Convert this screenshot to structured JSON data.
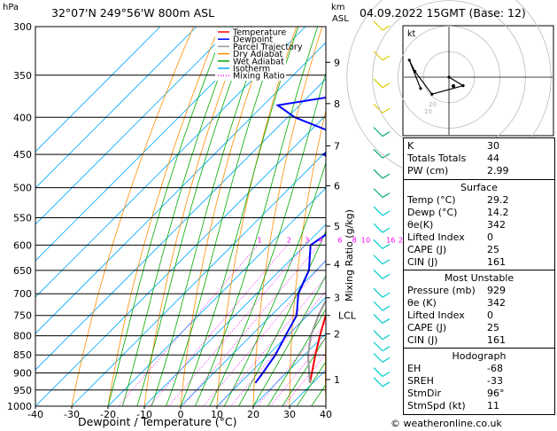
{
  "header": {
    "location": "32°07'N  249°56'W  800m  ASL",
    "datetime": "04.09.2022  15GMT  (Base: 12)",
    "hpa_unit": "hPa",
    "km_unit": "km",
    "asl_unit": "ASL"
  },
  "footer": {
    "copyright": "© weatheronline.co.uk"
  },
  "chart_data": {
    "type": "line",
    "title": "",
    "xlabel": "Dewpoint / Temperature (°C)",
    "ylabel": "hPa",
    "right_axis_label": "Mixing Ratio (g/kg)",
    "xlim": [
      -40,
      40
    ],
    "ylim": [
      1000,
      300
    ],
    "y_log": true,
    "x_ticks": [
      -40,
      -30,
      -20,
      -10,
      0,
      10,
      20,
      30,
      40
    ],
    "pressure_levels": [
      300,
      350,
      400,
      450,
      500,
      550,
      600,
      650,
      700,
      750,
      800,
      850,
      900,
      950,
      1000
    ],
    "height_km_ticks": [
      {
        "p": 919,
        "label": "1"
      },
      {
        "p": 795,
        "label": "2"
      },
      {
        "p": 709,
        "label": "3"
      },
      {
        "p": 638,
        "label": "4"
      },
      {
        "p": 565,
        "label": "5"
      },
      {
        "p": 497,
        "label": "6"
      },
      {
        "p": 438,
        "label": "7"
      },
      {
        "p": 383,
        "label": "8"
      },
      {
        "p": 336,
        "label": "9"
      }
    ],
    "lcl": {
      "p": 750,
      "label": "LCL"
    },
    "mixing_ratio_labels": [
      "1",
      "2",
      "3",
      "4",
      "6",
      "8",
      "10",
      "16",
      "20",
      "25"
    ],
    "legend": {
      "position": "top-left",
      "entries": [
        {
          "name": "Temperature",
          "color": "#ff0000"
        },
        {
          "name": "Dewpoint",
          "color": "#0000ff"
        },
        {
          "name": "Parcel Trajectory",
          "color": "#999999"
        },
        {
          "name": "Dry Adiabat",
          "color": "#ff8c00"
        },
        {
          "name": "Wet Adiabat",
          "color": "#00aa00"
        },
        {
          "name": "Isotherm",
          "color": "#00aaff"
        },
        {
          "name": "Mixing Ratio",
          "color": "#ff00ff"
        }
      ]
    },
    "series": [
      {
        "name": "Temperature",
        "color": "#ff0000",
        "points": [
          [
            929,
            29.2
          ],
          [
            900,
            27.0
          ],
          [
            850,
            23.0
          ],
          [
            800,
            19.0
          ],
          [
            750,
            15.0
          ],
          [
            700,
            11.0
          ],
          [
            650,
            7.0
          ],
          [
            600,
            2.5
          ],
          [
            550,
            -2.0
          ],
          [
            500,
            -6.5
          ],
          [
            450,
            -12.0
          ],
          [
            420,
            -15.5
          ],
          [
            400,
            -18.0
          ],
          [
            350,
            -26.0
          ],
          [
            320,
            -31.0
          ]
        ]
      },
      {
        "name": "Dewpoint",
        "color": "#0000ff",
        "points": [
          [
            929,
            14.2
          ],
          [
            900,
            13.5
          ],
          [
            850,
            12.0
          ],
          [
            800,
            9.5
          ],
          [
            750,
            7.0
          ],
          [
            700,
            1.5
          ],
          [
            650,
            -2.0
          ],
          [
            600,
            -8.5
          ],
          [
            570,
            -6.5
          ],
          [
            550,
            -6.0
          ],
          [
            500,
            -13.0
          ],
          [
            470,
            -19.0
          ],
          [
            450,
            -30.0
          ],
          [
            430,
            -26.0
          ],
          [
            400,
            -48.0
          ],
          [
            385,
            -56.0
          ],
          [
            375,
            -44.0
          ],
          [
            360,
            -35.0
          ],
          [
            340,
            -34.0
          ],
          [
            300,
            -38.5
          ]
        ]
      },
      {
        "name": "Parcel Trajectory",
        "color": "#999999",
        "points": [
          [
            929,
            29.2
          ],
          [
            850,
            21.0
          ],
          [
            800,
            16.5
          ],
          [
            750,
            13.0
          ],
          [
            700,
            10.0
          ],
          [
            650,
            7.0
          ],
          [
            600,
            3.5
          ],
          [
            550,
            -0.5
          ],
          [
            500,
            -5.5
          ],
          [
            450,
            -11.5
          ],
          [
            400,
            -19.0
          ],
          [
            350,
            -27.0
          ]
        ]
      }
    ]
  },
  "hodograph": {
    "label": "kt",
    "gray_labels": [
      "20",
      "10"
    ],
    "points_kt": [
      [
        0,
        0
      ],
      [
        5,
        -3
      ],
      [
        -6,
        -6
      ],
      [
        -12,
        2
      ],
      [
        -14,
        6
      ],
      [
        -10,
        -4
      ]
    ]
  },
  "indices": {
    "rows": [
      {
        "k": "K",
        "v": "30"
      },
      {
        "k": "Totals Totals",
        "v": "44"
      },
      {
        "k": "PW (cm)",
        "v": "2.99"
      }
    ],
    "surface": {
      "title": "Surface",
      "rows": [
        {
          "k": "Temp (°C)",
          "v": "29.2"
        },
        {
          "k": "Dewp (°C)",
          "v": "14.2"
        },
        {
          "k": "θe(K)",
          "v": "342"
        },
        {
          "k": "Lifted Index",
          "v": "0"
        },
        {
          "k": "CAPE (J)",
          "v": "25"
        },
        {
          "k": "CIN (J)",
          "v": "161"
        }
      ]
    },
    "most_unstable": {
      "title": "Most Unstable",
      "rows": [
        {
          "k": "Pressure (mb)",
          "v": "929"
        },
        {
          "k": "θe (K)",
          "v": "342"
        },
        {
          "k": "Lifted Index",
          "v": "0"
        },
        {
          "k": "CAPE (J)",
          "v": "25"
        },
        {
          "k": "CIN (J)",
          "v": "161"
        }
      ]
    },
    "hodograph_stats": {
      "title": "Hodograph",
      "rows": [
        {
          "k": "EH",
          "v": "-68"
        },
        {
          "k": "SREH",
          "v": "-33"
        },
        {
          "k": "StmDir",
          "v": "96°"
        },
        {
          "k": "StmSpd (kt)",
          "v": "11"
        }
      ]
    }
  }
}
